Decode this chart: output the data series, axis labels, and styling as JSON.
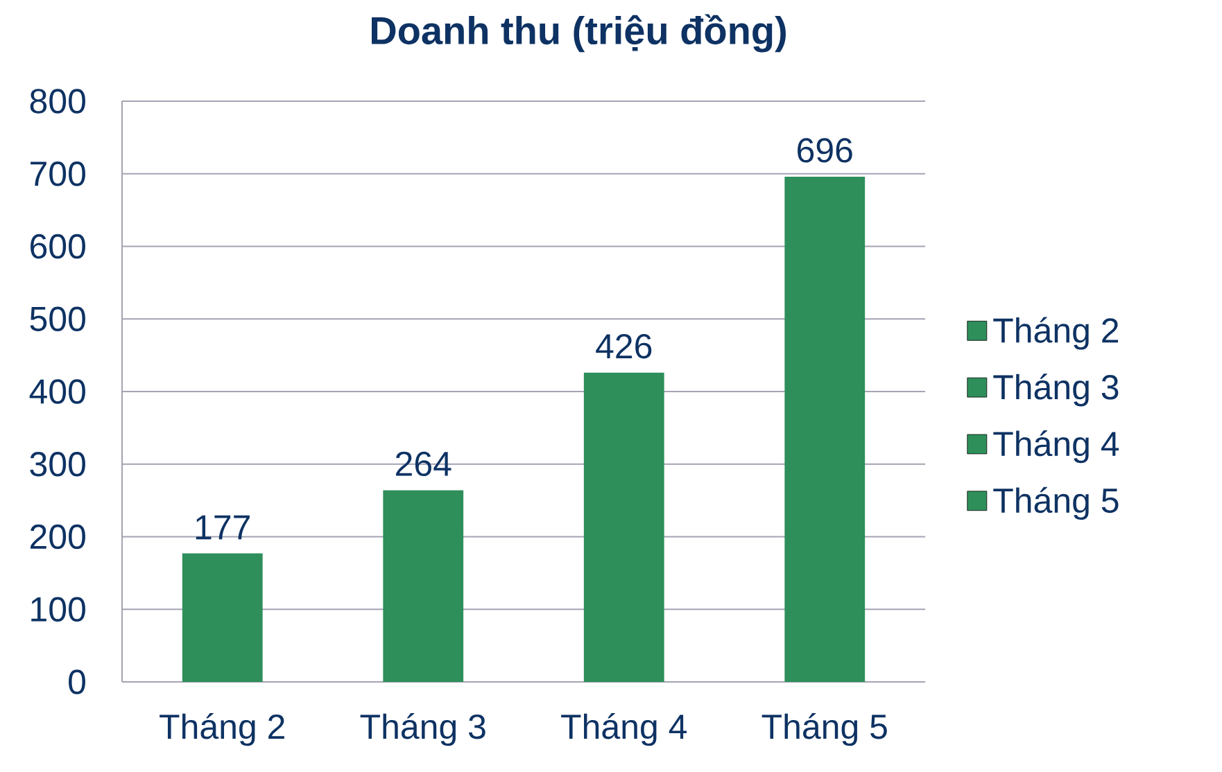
{
  "chart_data": {
    "type": "bar",
    "title": "Doanh thu (triệu đồng)",
    "categories": [
      "Tháng 2",
      "Tháng 3",
      "Tháng 4",
      "Tháng 5"
    ],
    "series": [
      {
        "name": "Tháng 2",
        "color": "#2e8f5a",
        "values": [
          177,
          null,
          null,
          null
        ]
      },
      {
        "name": "Tháng 3",
        "color": "#2e8f5a",
        "values": [
          null,
          264,
          null,
          null
        ]
      },
      {
        "name": "Tháng 4",
        "color": "#2e8f5a",
        "values": [
          null,
          null,
          426,
          null
        ]
      },
      {
        "name": "Tháng 5",
        "color": "#2e8f5a",
        "values": [
          null,
          null,
          null,
          696
        ]
      }
    ],
    "ylim": [
      0,
      800
    ],
    "yticks": [
      0,
      100,
      200,
      300,
      400,
      500,
      600,
      700,
      800
    ],
    "grid": "y",
    "legend": "right",
    "data_labels": true
  }
}
